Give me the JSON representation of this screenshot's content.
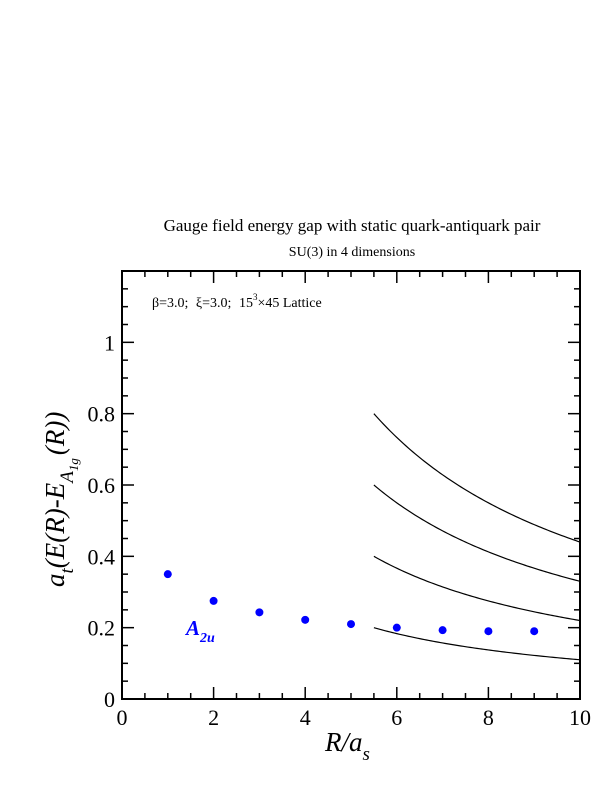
{
  "title": "Gauge field energy gap with static quark-antiquark pair",
  "subtitle": "SU(3) in 4 dimensions",
  "annotation": {
    "beta": "β=3.0;",
    "xi": "ξ=3.0;",
    "lattice_base": "15",
    "lattice_exp": "3",
    "lattice_rest": "×45 Lattice"
  },
  "colors": {
    "points": "#0000ff",
    "curves": "#000000",
    "frame": "#000000"
  },
  "chart_data": {
    "type": "scatter",
    "xlim": [
      0,
      10
    ],
    "ylim": [
      0,
      1.2
    ],
    "xticks": [
      "0",
      "2",
      "4",
      "6",
      "8",
      "10"
    ],
    "yticks": [
      "0",
      "0.2",
      "0.4",
      "0.6",
      "0.8",
      "1"
    ],
    "xlabel": {
      "main": "R/a",
      "sub": "s"
    },
    "ylabel": {
      "a": "a",
      "t": "t",
      "mid": "(E(R)-E",
      "A": "A",
      "sub": "1g",
      "end": "(R))"
    },
    "series": [
      {
        "name": "A2u",
        "label_main": "A",
        "label_sub": "2u",
        "x": [
          1,
          2,
          3,
          4,
          5,
          6,
          7,
          8,
          9
        ],
        "y": [
          0.35,
          0.275,
          0.243,
          0.222,
          0.21,
          0.2,
          0.193,
          0.19,
          0.19
        ]
      }
    ],
    "curves": [
      {
        "amplitude": 1.1,
        "x_start": 5.5,
        "x_end": 10
      },
      {
        "amplitude": 2.2,
        "x_start": 5.5,
        "x_end": 10
      },
      {
        "amplitude": 3.3,
        "x_start": 5.5,
        "x_end": 10
      },
      {
        "amplitude": 4.4,
        "x_start": 5.5,
        "x_end": 10
      }
    ]
  }
}
